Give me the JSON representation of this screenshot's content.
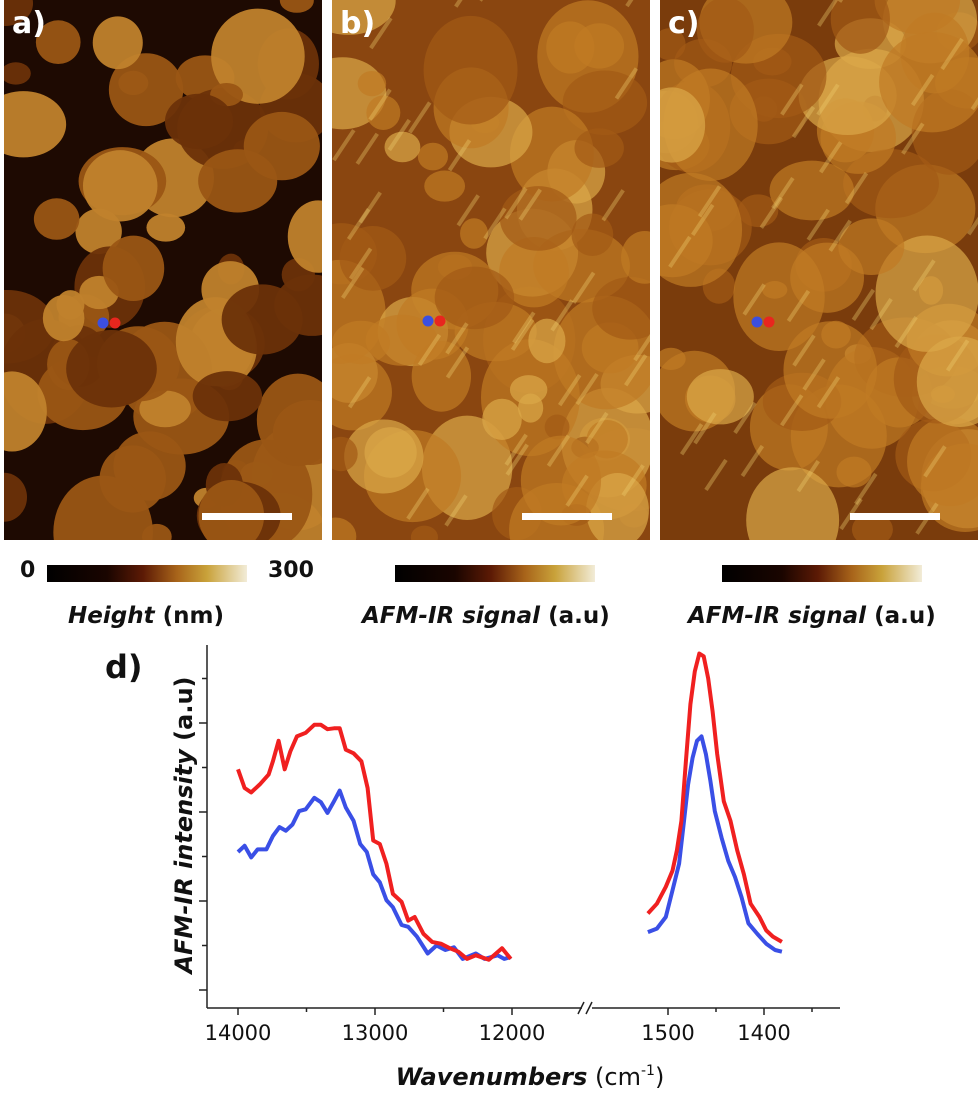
{
  "panels": [
    {
      "label": "a)",
      "colorbar": {
        "min": "0",
        "max": "300",
        "label_italic": "Height",
        "label_unit": "(nm)"
      }
    },
    {
      "label": "b)",
      "colorbar": {
        "label_italic": "AFM-IR signal",
        "label_unit": "(a.u)"
      }
    },
    {
      "label": "c)",
      "colorbar": {
        "label_italic": "AFM-IR signal",
        "label_unit": "(a.u)"
      }
    }
  ],
  "colors": {
    "red_marker": "#e8261e",
    "blue_marker": "#3b4fe0",
    "colormap": [
      "#000000",
      "#1a0500",
      "#5c1a05",
      "#a8641a",
      "#c9a23a",
      "#f2ecd8"
    ]
  },
  "chart_data": {
    "type": "line",
    "panel_label": "d)",
    "xlabel_italic": "Wavenumbers",
    "xlabel_unit": "(cm",
    "xlabel_sup": "-1",
    "xlabel_close": ")",
    "ylabel_italic": "AFM-IR intensity",
    "ylabel_unit": "(a.u)",
    "x_axis": "reversed, broken between 12000 and 1500",
    "x_ticks_left": [
      "14000",
      "13000",
      "12000"
    ],
    "x_ticks_right": [
      "1500",
      "1400"
    ],
    "y_tick_labels": "none",
    "grid": false,
    "legend": "none",
    "series": [
      {
        "color": "#f02020",
        "left": {
          "x": [
            14000,
            13952,
            13904,
            13841,
            13777,
            13745,
            13704,
            13659,
            13618,
            13570,
            13506,
            13443,
            13395,
            13347,
            13299,
            13258,
            13213,
            13156,
            13099,
            13054,
            13013,
            12965,
            12917,
            12869,
            12806,
            12758,
            12710,
            12646,
            12583,
            12519,
            12455,
            12392,
            12328,
            12264,
            12169,
            12073,
            12009
          ],
          "y": [
            2.48,
            2.27,
            2.22,
            2.31,
            2.42,
            2.57,
            2.8,
            2.48,
            2.68,
            2.85,
            2.89,
            2.98,
            2.98,
            2.93,
            2.94,
            2.94,
            2.7,
            2.66,
            2.57,
            2.27,
            1.68,
            1.64,
            1.42,
            1.08,
            0.99,
            0.78,
            0.82,
            0.63,
            0.54,
            0.52,
            0.47,
            0.43,
            0.35,
            0.39,
            0.34,
            0.47,
            0.35
          ]
        },
        "right": {
          "x": [
            1520.9,
            1511.6,
            1502.3,
            1495.3,
            1490.7,
            1486.0,
            1481.4,
            1476.7,
            1472.1,
            1467.4,
            1462.8,
            1458.1,
            1453.5,
            1448.8,
            1441.9,
            1434.9,
            1427.9,
            1420.9,
            1414.0,
            1404.7,
            1397.7,
            1390.7,
            1381.4
          ],
          "y": [
            0.86,
            0.97,
            1.16,
            1.34,
            1.57,
            1.9,
            2.57,
            3.21,
            3.58,
            3.78,
            3.75,
            3.5,
            3.13,
            2.65,
            2.12,
            1.9,
            1.57,
            1.3,
            0.97,
            0.82,
            0.67,
            0.6,
            0.54
          ]
        }
      },
      {
        "color": "#3a4fe6",
        "left": {
          "x": [
            14000,
            13952,
            13904,
            13857,
            13793,
            13745,
            13697,
            13650,
            13602,
            13554,
            13506,
            13443,
            13395,
            13347,
            13299,
            13258,
            13213,
            13156,
            13108,
            13060,
            13013,
            12965,
            12917,
            12869,
            12806,
            12758,
            12694,
            12615,
            12551,
            12487,
            12423,
            12360,
            12264,
            12200,
            12105,
            12057,
            12009
          ],
          "y": [
            1.55,
            1.62,
            1.49,
            1.58,
            1.58,
            1.73,
            1.83,
            1.79,
            1.86,
            2.01,
            2.03,
            2.16,
            2.11,
            1.99,
            2.12,
            2.24,
            2.05,
            1.9,
            1.64,
            1.55,
            1.3,
            1.21,
            1.01,
            0.93,
            0.73,
            0.71,
            0.6,
            0.41,
            0.5,
            0.45,
            0.48,
            0.35,
            0.41,
            0.35,
            0.39,
            0.35,
            0.37
          ]
        },
        "right": {
          "x": [
            1520.9,
            1511.6,
            1502.3,
            1495.3,
            1488.4,
            1483.7,
            1479.1,
            1474.4,
            1469.8,
            1465.1,
            1460.5,
            1455.8,
            1451.2,
            1444.2,
            1437.2,
            1430.2,
            1423.3,
            1416.3,
            1407.0,
            1397.7,
            1388.4,
            1381.4
          ],
          "y": [
            0.65,
            0.69,
            0.82,
            1.12,
            1.42,
            1.86,
            2.31,
            2.61,
            2.8,
            2.85,
            2.65,
            2.35,
            2.01,
            1.71,
            1.45,
            1.27,
            1.04,
            0.75,
            0.63,
            0.52,
            0.45,
            0.43
          ]
        }
      }
    ]
  }
}
